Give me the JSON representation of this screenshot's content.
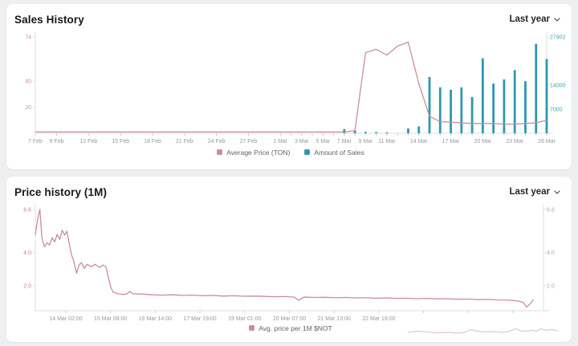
{
  "sales_panel": {
    "title": "Sales History",
    "range_label": "Last year"
  },
  "price_panel": {
    "title": "Price history (1M)",
    "range_label": "Last year"
  },
  "colors": {
    "page_bg": "#edeff1",
    "panel_bg": "#ffffff",
    "axis_line": "#dcdee0",
    "x_tick_text": "#97999b",
    "price_line": "#cb8d9a",
    "sales_bar": "#2d98af"
  },
  "chart_data": [
    {
      "type": "line+bar",
      "title": "Sales History",
      "n": 49,
      "x_ticks": [
        {
          "i": 0,
          "label": "7 Feb"
        },
        {
          "i": 2,
          "label": "9 Feb"
        },
        {
          "i": 5,
          "label": "12 Feb"
        },
        {
          "i": 8,
          "label": "15 Feb"
        },
        {
          "i": 11,
          "label": "18 Feb"
        },
        {
          "i": 14,
          "label": "21 Feb"
        },
        {
          "i": 17,
          "label": "24 Feb"
        },
        {
          "i": 20,
          "label": "27 Feb"
        },
        {
          "i": 23,
          "label": "1 Mar"
        },
        {
          "i": 25,
          "label": "3 Mar"
        },
        {
          "i": 27,
          "label": "5 Mar"
        },
        {
          "i": 29,
          "label": "7 Mar"
        },
        {
          "i": 31,
          "label": "9 Mar"
        },
        {
          "i": 33,
          "label": "11 Mar"
        },
        {
          "i": 36,
          "label": "14 Mar"
        },
        {
          "i": 39,
          "label": "17 Mar"
        },
        {
          "i": 42,
          "label": "20 Mar"
        },
        {
          "i": 45,
          "label": "23 Mar"
        },
        {
          "i": 48,
          "label": "26 Mar"
        }
      ],
      "minor_from": 24,
      "minor_to": 48,
      "left_axis": {
        "min": 0,
        "max": 74,
        "ticks": [
          "74",
          "40",
          "20"
        ],
        "color": "#c49098"
      },
      "right_axis": {
        "min": 0,
        "max": 27902,
        "ticks": [
          "27902",
          "14000",
          "7000"
        ],
        "color": "#4aa0b8"
      },
      "series": [
        {
          "name": "Average Price (TON)",
          "kind": "line",
          "axis": "left",
          "color": "#cb8d9a",
          "values": [
            1,
            1,
            1,
            1,
            1,
            1,
            1,
            1,
            1,
            1,
            1,
            1,
            1,
            1,
            1,
            1,
            1,
            1,
            1,
            1,
            1,
            1,
            1,
            1,
            1,
            1,
            1,
            1,
            1,
            1,
            2,
            62,
            64.5,
            60,
            67,
            70,
            38,
            13,
            9,
            8.5,
            8,
            7.5,
            7.5,
            7.5,
            7,
            7,
            7.5,
            8,
            10
          ]
        },
        {
          "name": "Amount of Sales",
          "kind": "bar",
          "axis": "right",
          "color": "#2d98af",
          "values": [
            0,
            0,
            0,
            0,
            0,
            0,
            0,
            0,
            0,
            0,
            0,
            0,
            0,
            0,
            0,
            0,
            0,
            0,
            0,
            0,
            0,
            0,
            0,
            0,
            0,
            0,
            0,
            0,
            0,
            1200,
            800,
            400,
            350,
            250,
            0,
            1400,
            2000,
            16300,
            13300,
            12600,
            13300,
            10500,
            21700,
            14400,
            15600,
            18300,
            15100,
            25900,
            21500
          ]
        }
      ]
    },
    {
      "type": "line",
      "title": "Price history (1M)",
      "x_ticks": [
        {
          "f": 0.06,
          "label": "14 Mar 02:00"
        },
        {
          "f": 0.148,
          "label": "15 Mar 08:00"
        },
        {
          "f": 0.236,
          "label": "16 Mar 14:00"
        },
        {
          "f": 0.324,
          "label": "17 Mar 19:00"
        },
        {
          "f": 0.412,
          "label": "19 Mar 01:00"
        },
        {
          "f": 0.5,
          "label": "20 Mar 07:00"
        },
        {
          "f": 0.588,
          "label": "21 Mar 13:00"
        },
        {
          "f": 0.676,
          "label": "22 Mar 19:00"
        }
      ],
      "minor_fracs": [
        0.764,
        0.852,
        0.94
      ],
      "left_axis": {
        "min": 0.5,
        "max": 6.6,
        "ticks": [
          "6.6",
          "4.0",
          "2.0"
        ],
        "color": "#c2848d"
      },
      "right_axis": {
        "min": 0.5,
        "max": 6.6,
        "ticks": [
          "6.6",
          "4.0",
          "2.0"
        ],
        "color": "#a7abae"
      },
      "series": [
        {
          "name": "Avg. price per 1M $NOT",
          "kind": "line",
          "axis": "left",
          "color": "#cb8d9a",
          "points": [
            [
              0.0,
              5.1
            ],
            [
              0.005,
              6.1
            ],
            [
              0.009,
              6.6
            ],
            [
              0.013,
              4.9
            ],
            [
              0.018,
              4.35
            ],
            [
              0.023,
              4.6
            ],
            [
              0.028,
              4.45
            ],
            [
              0.033,
              4.9
            ],
            [
              0.038,
              4.65
            ],
            [
              0.043,
              5.1
            ],
            [
              0.048,
              4.8
            ],
            [
              0.053,
              5.35
            ],
            [
              0.058,
              5.05
            ],
            [
              0.062,
              5.3
            ],
            [
              0.067,
              4.5
            ],
            [
              0.071,
              3.9
            ],
            [
              0.076,
              3.45
            ],
            [
              0.081,
              2.75
            ],
            [
              0.086,
              3.25
            ],
            [
              0.091,
              3.4
            ],
            [
              0.096,
              3.05
            ],
            [
              0.102,
              3.3
            ],
            [
              0.11,
              3.15
            ],
            [
              0.118,
              3.3
            ],
            [
              0.126,
              3.1
            ],
            [
              0.133,
              3.25
            ],
            [
              0.139,
              3.15
            ],
            [
              0.143,
              2.6
            ],
            [
              0.148,
              1.95
            ],
            [
              0.153,
              1.62
            ],
            [
              0.163,
              1.52
            ],
            [
              0.173,
              1.48
            ],
            [
              0.181,
              1.52
            ],
            [
              0.186,
              1.66
            ],
            [
              0.192,
              1.52
            ],
            [
              0.21,
              1.5
            ],
            [
              0.23,
              1.46
            ],
            [
              0.25,
              1.44
            ],
            [
              0.27,
              1.46
            ],
            [
              0.29,
              1.42
            ],
            [
              0.31,
              1.44
            ],
            [
              0.33,
              1.4
            ],
            [
              0.35,
              1.42
            ],
            [
              0.37,
              1.38
            ],
            [
              0.39,
              1.4
            ],
            [
              0.41,
              1.37
            ],
            [
              0.43,
              1.38
            ],
            [
              0.45,
              1.36
            ],
            [
              0.47,
              1.34
            ],
            [
              0.49,
              1.35
            ],
            [
              0.51,
              1.32
            ],
            [
              0.518,
              1.12
            ],
            [
              0.528,
              1.32
            ],
            [
              0.55,
              1.3
            ],
            [
              0.57,
              1.31
            ],
            [
              0.59,
              1.28
            ],
            [
              0.61,
              1.3
            ],
            [
              0.63,
              1.27
            ],
            [
              0.65,
              1.28
            ],
            [
              0.67,
              1.25
            ],
            [
              0.69,
              1.27
            ],
            [
              0.71,
              1.24
            ],
            [
              0.73,
              1.25
            ],
            [
              0.75,
              1.22
            ],
            [
              0.77,
              1.24
            ],
            [
              0.79,
              1.21
            ],
            [
              0.81,
              1.22
            ],
            [
              0.83,
              1.19
            ],
            [
              0.85,
              1.2
            ],
            [
              0.87,
              1.17
            ],
            [
              0.89,
              1.18
            ],
            [
              0.91,
              1.15
            ],
            [
              0.93,
              1.14
            ],
            [
              0.95,
              1.08
            ],
            [
              0.96,
              1.0
            ],
            [
              0.967,
              0.72
            ],
            [
              0.974,
              0.92
            ],
            [
              0.98,
              1.16
            ]
          ]
        }
      ]
    }
  ]
}
